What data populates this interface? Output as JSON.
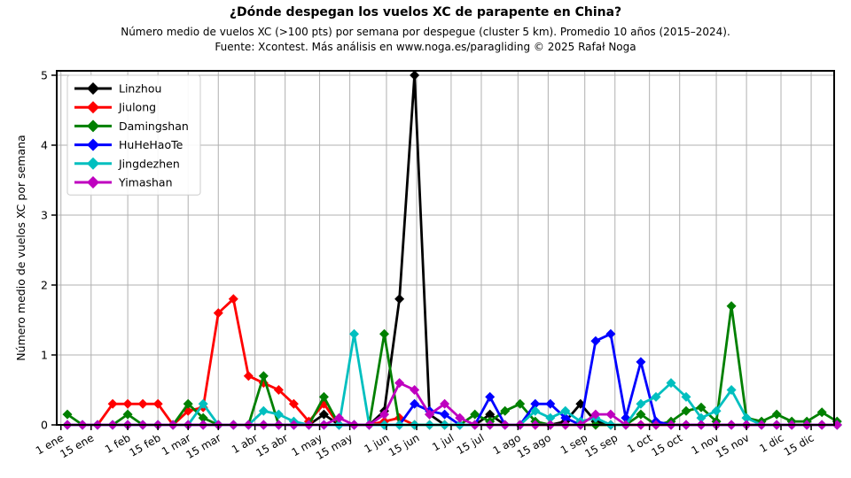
{
  "header": {
    "title": "¿Dónde despegan los vuelos XC de parapente en China?",
    "subtitle1": "Número medio de vuelos XC (>100 pts) por semana por despegue (cluster 5 km). Promedio 10 años (2015–2024).",
    "subtitle2": "Fuente: Xcontest. Más análisis en www.noga.es/paragliding © 2025 Rafał Noga"
  },
  "chart_data": {
    "type": "line",
    "marker": "diamond",
    "grid": true,
    "legend_position": "upper-left",
    "title": "¿Dónde despegan los vuelos XC de parapente en China?",
    "xlabel": "",
    "ylabel": "Número medio de vuelos XC por semana",
    "ylim": [
      0,
      5
    ],
    "yticks": [
      0,
      1,
      2,
      3,
      4,
      5
    ],
    "x_description": "52 weekly data points; week i is centered on day-of-year (i-1)*7+4",
    "xticks": [
      {
        "label": "1 ene",
        "day": 1
      },
      {
        "label": "15 ene",
        "day": 15
      },
      {
        "label": "1 feb",
        "day": 32
      },
      {
        "label": "15 feb",
        "day": 46
      },
      {
        "label": "1 mar",
        "day": 60
      },
      {
        "label": "15 mar",
        "day": 74
      },
      {
        "label": "1 abr",
        "day": 91
      },
      {
        "label": "15 abr",
        "day": 105
      },
      {
        "label": "1 may",
        "day": 121
      },
      {
        "label": "15 may",
        "day": 135
      },
      {
        "label": "1 jun",
        "day": 152
      },
      {
        "label": "15 jun",
        "day": 166
      },
      {
        "label": "1 jul",
        "day": 182
      },
      {
        "label": "15 jul",
        "day": 196
      },
      {
        "label": "1 ago",
        "day": 213
      },
      {
        "label": "15 ago",
        "day": 227
      },
      {
        "label": "1 sep",
        "day": 244
      },
      {
        "label": "15 sep",
        "day": 258
      },
      {
        "label": "1 oct",
        "day": 274
      },
      {
        "label": "15 oct",
        "day": 288
      },
      {
        "label": "1 nov",
        "day": 305
      },
      {
        "label": "15 nov",
        "day": 319
      },
      {
        "label": "1 dic",
        "day": 335
      },
      {
        "label": "15 dic",
        "day": 349
      }
    ],
    "series": [
      {
        "name": "Linzhou",
        "color": "#000000",
        "values": [
          0,
          0,
          0,
          0,
          0,
          0,
          0,
          0,
          0,
          0,
          0,
          0,
          0,
          0,
          0,
          0,
          0,
          0.15,
          0,
          0,
          0,
          0.2,
          1.8,
          5.0,
          0.15,
          0,
          0,
          0,
          0.15,
          0,
          0,
          0,
          0,
          0.05,
          0.3,
          0.05,
          0,
          0,
          0,
          0,
          0,
          0,
          0,
          0,
          0,
          0,
          0,
          0,
          0,
          0,
          0,
          0
        ]
      },
      {
        "name": "Jiulong",
        "color": "#ff0000",
        "values": [
          0,
          0,
          0,
          0.3,
          0.3,
          0.3,
          0.3,
          0,
          0.2,
          0.25,
          1.6,
          1.8,
          0.7,
          0.6,
          0.5,
          0.3,
          0.05,
          0.3,
          0,
          0,
          0,
          0.05,
          0.1,
          0,
          0,
          0,
          0,
          0,
          0,
          0,
          0,
          0,
          0,
          0,
          0,
          0,
          0,
          0,
          0,
          0,
          0,
          0,
          0,
          0,
          0,
          0,
          0,
          0,
          0,
          0,
          0,
          0
        ]
      },
      {
        "name": "Damingshan",
        "color": "#008000",
        "values": [
          0.15,
          0,
          0,
          0,
          0.15,
          0,
          0,
          0,
          0.3,
          0.1,
          0,
          0,
          0,
          0.7,
          0,
          0,
          0,
          0.4,
          0,
          0,
          0,
          1.3,
          0,
          0,
          0,
          0,
          0,
          0.15,
          0.05,
          0.2,
          0.3,
          0.05,
          0,
          0,
          0,
          0,
          0,
          0,
          0.15,
          0,
          0.05,
          0.2,
          0.25,
          0.05,
          1.7,
          0.1,
          0.05,
          0.15,
          0.05,
          0.05,
          0.18,
          0.05
        ]
      },
      {
        "name": "HuHeHaoTe",
        "color": "#0000ff",
        "values": [
          0,
          0,
          0,
          0,
          0,
          0,
          0,
          0,
          0,
          0,
          0,
          0,
          0,
          0,
          0,
          0,
          0,
          0,
          0,
          0,
          0,
          0,
          0,
          0.3,
          0.2,
          0.15,
          0,
          0,
          0.4,
          0,
          0,
          0.3,
          0.3,
          0.1,
          0,
          1.2,
          1.3,
          0.1,
          0.9,
          0.05,
          0,
          0,
          0,
          0,
          0,
          0,
          0,
          0,
          0,
          0,
          0,
          0
        ]
      },
      {
        "name": "Jingdezhen",
        "color": "#00bfbf",
        "values": [
          0,
          0,
          0,
          0,
          0,
          0,
          0,
          0,
          0,
          0.3,
          0,
          0,
          0,
          0.2,
          0.15,
          0.05,
          0,
          0,
          0,
          1.3,
          0,
          0,
          0,
          0,
          0,
          0,
          0,
          0,
          0,
          0,
          0,
          0.2,
          0.1,
          0.2,
          0.05,
          0.1,
          0,
          0,
          0.3,
          0.4,
          0.6,
          0.4,
          0.1,
          0.2,
          0.5,
          0.1,
          0,
          0,
          0,
          0,
          0,
          0
        ]
      },
      {
        "name": "Yimashan",
        "color": "#bf00bf",
        "values": [
          0,
          0,
          0,
          0,
          0,
          0,
          0,
          0,
          0,
          0,
          0,
          0,
          0,
          0,
          0,
          0,
          0,
          0,
          0.1,
          0,
          0,
          0.15,
          0.6,
          0.5,
          0.15,
          0.3,
          0.1,
          0,
          0,
          0,
          0,
          0,
          0,
          0,
          0,
          0.15,
          0.15,
          0,
          0,
          0,
          0,
          0,
          0,
          0,
          0,
          0,
          0,
          0,
          0,
          0,
          0,
          0
        ]
      }
    ],
    "style": {
      "grid_color": "#b0b0b0",
      "spine_color": "#000000",
      "background": "#ffffff",
      "line_width": 2.8,
      "xtick_rotation_deg": -30
    }
  }
}
